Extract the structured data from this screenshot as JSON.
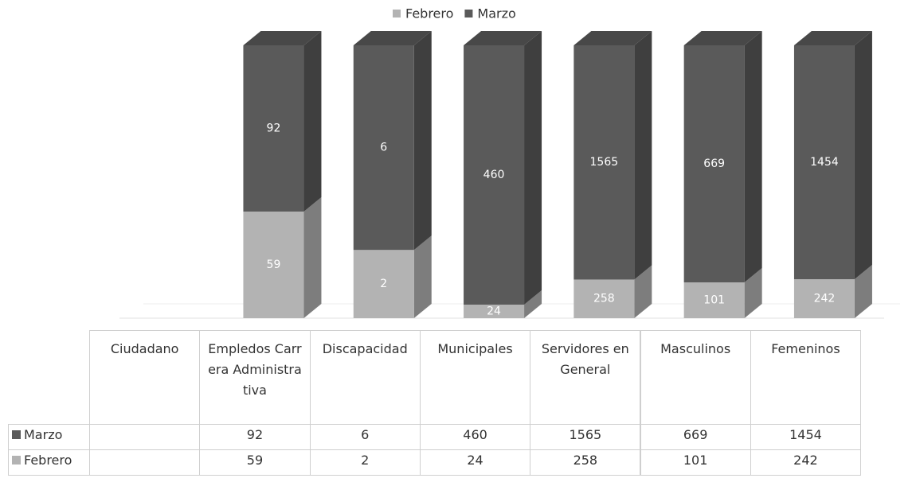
{
  "chart_data": {
    "type": "bar",
    "stacked": "percent",
    "categories": [
      "Ciudadano",
      "Empledos Carrera Administrativa",
      "Discapacidad",
      "Municipales",
      "Servidores en General",
      "Masculinos",
      "Femeninos"
    ],
    "series": [
      {
        "name": "Febrero",
        "color": "#b3b3b3",
        "values": [
          null,
          59,
          2,
          24,
          258,
          101,
          242
        ]
      },
      {
        "name": "Marzo",
        "color": "#5a5a5a",
        "values": [
          null,
          92,
          6,
          460,
          1565,
          669,
          1454
        ]
      }
    ],
    "legend": "top"
  }
}
